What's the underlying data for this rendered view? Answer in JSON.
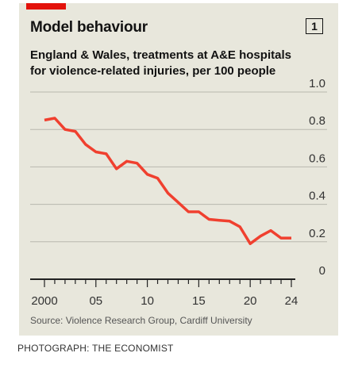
{
  "header": {
    "title": "Model behaviour",
    "chart_number": "1",
    "subtitle": "England & Wales, treatments at A&E hospitals for violence-related injuries, per 100 people"
  },
  "footer": {
    "source": "Source: Violence Research Group, Cardiff University",
    "credit": "PHOTOGRAPH: THE ECONOMIST"
  },
  "colors": {
    "accent": "#e3120b",
    "line": "#f0402f",
    "panel": "#e8e7dc"
  },
  "chart_data": {
    "type": "line",
    "title": "Model behaviour",
    "subtitle": "England & Wales, treatments at A&E hospitals for violence-related injuries, per 100 people",
    "x_tick_labels": [
      "2000",
      "05",
      "10",
      "15",
      "20",
      "24"
    ],
    "x_tick_values": [
      2000,
      2005,
      2010,
      2015,
      2020,
      2024
    ],
    "y_tick_labels": [
      "0",
      "0.2",
      "0.4",
      "0.6",
      "0.8",
      "1.0"
    ],
    "y_tick_values": [
      0,
      0.2,
      0.4,
      0.6,
      0.8,
      1.0
    ],
    "xlim": [
      2000,
      2024
    ],
    "ylim": [
      0,
      1.0
    ],
    "grid": "horizontal",
    "y_axis_side": "right",
    "series": [
      {
        "color": "#f0402f",
        "x": [
          2000,
          2001,
          2002,
          2003,
          2004,
          2005,
          2006,
          2007,
          2008,
          2009,
          2010,
          2011,
          2012,
          2013,
          2014,
          2015,
          2016,
          2017,
          2018,
          2019,
          2020,
          2021,
          2022,
          2023,
          2024
        ],
        "y": [
          0.85,
          0.86,
          0.8,
          0.79,
          0.72,
          0.68,
          0.67,
          0.59,
          0.63,
          0.62,
          0.56,
          0.54,
          0.46,
          0.41,
          0.36,
          0.36,
          0.32,
          0.315,
          0.31,
          0.28,
          0.19,
          0.23,
          0.26,
          0.22,
          0.22
        ]
      }
    ]
  }
}
